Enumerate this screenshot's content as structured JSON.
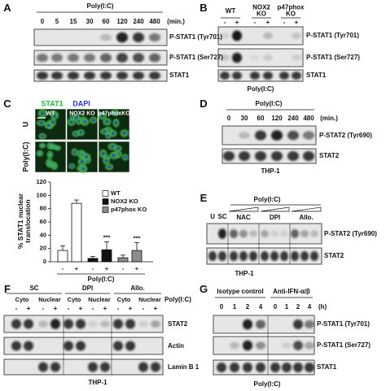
{
  "panels": {
    "a": {
      "letter": "A",
      "treatment": "Poly(I:C)",
      "lanes": [
        "0",
        "5",
        "15",
        "30",
        "60",
        "120",
        "240",
        "480"
      ],
      "unit": "(min.)",
      "rows": [
        "P-STAT1 (Tyr701)",
        "P-STAT1 (Ser727)",
        "STAT1"
      ]
    },
    "b": {
      "letter": "B",
      "groups": [
        "WT",
        "NOX2 KO",
        "p47phox KO"
      ],
      "lanes": [
        "-",
        "+",
        "-",
        "+",
        "-",
        "+"
      ],
      "rows": [
        "P-STAT1 (Tyr701)",
        "P-STAT1 (Ser727)",
        "STAT1"
      ],
      "treatment": "Poly(I:C)"
    },
    "c": {
      "letter": "C",
      "stains": [
        "STAT1",
        "DAPI"
      ],
      "columns": [
        "WT",
        "NOX2 KO",
        "p47phoxKO"
      ],
      "rows": [
        "U",
        "Poly(I:C)"
      ]
    },
    "d": {
      "letter": "D",
      "treatment": "Poly(I:C)",
      "lanes": [
        "0",
        "30",
        "60",
        "120",
        "240",
        "480"
      ],
      "unit": "(min.)",
      "rows": [
        "P-STAT2 (Tyr690)",
        "STAT2"
      ],
      "cell_line": "THP-1"
    },
    "e": {
      "letter": "E",
      "treatment": "Poly(I:C)",
      "lanes": [
        "U",
        "SC"
      ],
      "groups": [
        "NAC",
        "DPI",
        "Allo."
      ],
      "rows": [
        "P-STAT2 (Tyr690)",
        "STAT2"
      ],
      "cell_line": "THP-1"
    },
    "f": {
      "letter": "F",
      "groups": [
        "SC",
        "DPI",
        "Allo."
      ],
      "fractions": [
        "Cyto",
        "Nuclear",
        "Cyto",
        "Nuclear",
        "Cyto",
        "Nuclear"
      ],
      "treatment": "Poly(I:C)",
      "lanes": [
        "-",
        "+",
        "-",
        "+",
        "-",
        "+",
        "-",
        "+",
        "-",
        "+",
        "-",
        "+"
      ],
      "rows": [
        "STAT2",
        "Actin",
        "Lamin B 1"
      ],
      "cell_line": "THP-1"
    },
    "g": {
      "letter": "G",
      "groups": [
        "Isotype control",
        "Anti-IFN-α/β"
      ],
      "lanes": [
        "0",
        "1",
        "2",
        "4",
        "0",
        "1",
        "2",
        "4"
      ],
      "unit": "(h)",
      "rows": [
        "P-STAT1 (Tyr701)",
        "P-STAT1 (Ser727)",
        "STAT1"
      ],
      "treatment": "Poly(I:C)"
    }
  },
  "chart_data": {
    "type": "bar",
    "y_label": "% STAT1 nuclear translocation",
    "x_label": "Poly(I:C)",
    "categories": [
      "-",
      "+",
      "-",
      "+",
      "-",
      "+"
    ],
    "series": [
      {
        "name": "WT",
        "color": "#ffffff",
        "values": [
          17,
          88,
          null,
          null,
          null,
          null
        ],
        "errors": [
          7,
          5,
          null,
          null,
          null,
          null
        ]
      },
      {
        "name": "NOX2 KO",
        "color": "#111111",
        "values": [
          null,
          null,
          5,
          18,
          null,
          null
        ],
        "errors": [
          null,
          null,
          3,
          12,
          null,
          null
        ],
        "annotation": "***"
      },
      {
        "name": "p47phox KO",
        "color": "#8c8c8c",
        "values": [
          null,
          null,
          null,
          null,
          6,
          17
        ],
        "errors": [
          null,
          null,
          null,
          null,
          4,
          12
        ],
        "annotation": "***"
      }
    ],
    "ylim": [
      0,
      120
    ],
    "yticks": [
      0,
      20,
      40,
      60,
      80,
      100,
      120
    ]
  }
}
